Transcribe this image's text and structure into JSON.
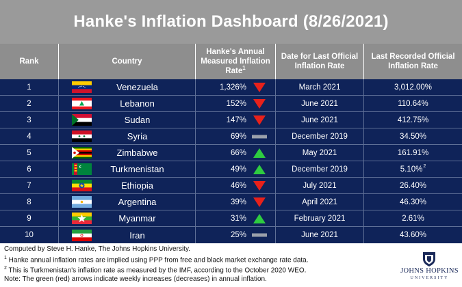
{
  "title": "Hanke's Inflation Dashboard (8/26/2021)",
  "headers": {
    "rank": "Rank",
    "country": "Country",
    "annual_rate": "Hanke's Annual Measured Inflation Rate",
    "annual_rate_sup": "1",
    "date": "Date for Last Official Inflation Rate",
    "official": "Last Recorded Official Inflation Rate"
  },
  "chart_data": {
    "type": "table",
    "columns": [
      "Rank",
      "Country",
      "Hanke's Annual Measured Inflation Rate",
      "Date for Last Official Inflation Rate",
      "Last Recorded Official Inflation Rate"
    ],
    "rows": [
      {
        "rank": "1",
        "country": "Venezuela",
        "rate": "1,326%",
        "trend": "down",
        "date": "March 2021",
        "official": "3,012.00%",
        "official_sup": ""
      },
      {
        "rank": "2",
        "country": "Lebanon",
        "rate": "152%",
        "trend": "down",
        "date": "June 2021",
        "official": "110.64%",
        "official_sup": ""
      },
      {
        "rank": "3",
        "country": "Sudan",
        "rate": "147%",
        "trend": "down",
        "date": "June 2021",
        "official": "412.75%",
        "official_sup": ""
      },
      {
        "rank": "4",
        "country": "Syria",
        "rate": "69%",
        "trend": "flat",
        "date": "December 2019",
        "official": "34.50%",
        "official_sup": ""
      },
      {
        "rank": "5",
        "country": "Zimbabwe",
        "rate": "66%",
        "trend": "up",
        "date": "May 2021",
        "official": "161.91%",
        "official_sup": ""
      },
      {
        "rank": "6",
        "country": "Turkmenistan",
        "rate": "49%",
        "trend": "up",
        "date": "December 2019",
        "official": "5.10%",
        "official_sup": "2"
      },
      {
        "rank": "7",
        "country": "Ethiopia",
        "rate": "46%",
        "trend": "down",
        "date": "July 2021",
        "official": "26.40%",
        "official_sup": ""
      },
      {
        "rank": "8",
        "country": "Argentina",
        "rate": "39%",
        "trend": "down",
        "date": "April 2021",
        "official": "46.30%",
        "official_sup": ""
      },
      {
        "rank": "9",
        "country": "Myanmar",
        "rate": "31%",
        "trend": "up",
        "date": "February 2021",
        "official": "2.61%",
        "official_sup": ""
      },
      {
        "rank": "10",
        "country": "Iran",
        "rate": "25%",
        "trend": "flat",
        "date": "June 2021",
        "official": "43.60%",
        "official_sup": ""
      }
    ]
  },
  "footer": {
    "line1": "Computed by Steve H. Hanke, The Johns Hopkins University.",
    "line2_sup": "1",
    "line2": " Hanke annual inflation rates are implied using PPP from free and black market exchange rate data.",
    "line3_sup": "2",
    "line3": " This is Turkmenistan's inflation rate as measured by the IMF, according to the October 2020 WEO.",
    "line4": "Note: The green (red) arrows indicate weekly increases (decreases) in annual inflation."
  },
  "logo": {
    "name": "JOHNS HOPKINS",
    "sub": "UNIVERSITY"
  },
  "colors": {
    "title_bg": "#9a9a9a",
    "header_bg": "#8e8e8e",
    "table_bg": "#0f2359",
    "arrow_up": "#2ecc40",
    "arrow_down": "#e8211b",
    "flat": "#9aa0ab"
  }
}
